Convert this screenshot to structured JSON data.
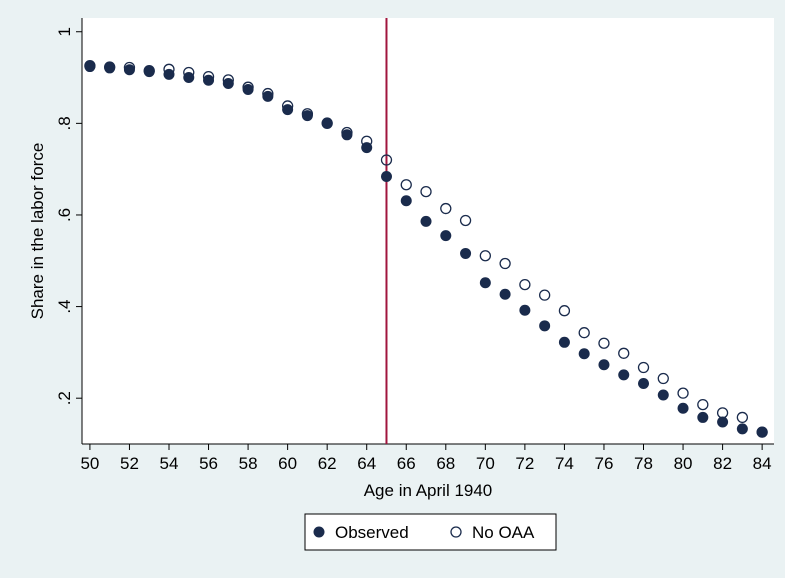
{
  "chart_data": {
    "type": "scatter",
    "xlabel": "Age in April 1940",
    "ylabel": "Share in the labor force",
    "xlim": [
      49.6,
      84.6
    ],
    "ylim": [
      0.1,
      1.03
    ],
    "x_ticks": [
      50,
      52,
      54,
      56,
      58,
      60,
      62,
      64,
      66,
      68,
      70,
      72,
      74,
      76,
      78,
      80,
      82,
      84
    ],
    "x_tick_labels": [
      "50",
      "52",
      "54",
      "56",
      "58",
      "60",
      "62",
      "64",
      "66",
      "68",
      "70",
      "72",
      "74",
      "76",
      "78",
      "80",
      "82",
      "84"
    ],
    "y_ticks": [
      0.2,
      0.4,
      0.6,
      0.8,
      1.0
    ],
    "y_tick_labels": [
      ".2",
      ".4",
      ".6",
      ".8",
      "1"
    ],
    "grid": false,
    "vertical_line": {
      "x": 65,
      "color": "#a0153e"
    },
    "legend_position": "bottom-center",
    "series": [
      {
        "name": "Observed",
        "marker": "filled-circle",
        "color": "#1a2b4c",
        "x": [
          50,
          51,
          52,
          53,
          54,
          55,
          56,
          57,
          58,
          59,
          60,
          61,
          62,
          63,
          64,
          65,
          66,
          67,
          68,
          69,
          70,
          71,
          72,
          73,
          74,
          75,
          76,
          77,
          78,
          79,
          80,
          81,
          82,
          83,
          84
        ],
        "y": [
          0.924,
          0.921,
          0.917,
          0.913,
          0.907,
          0.9,
          0.894,
          0.887,
          0.874,
          0.859,
          0.83,
          0.817,
          0.801,
          0.775,
          0.747,
          0.684,
          0.631,
          0.586,
          0.555,
          0.516,
          0.452,
          0.427,
          0.392,
          0.358,
          0.322,
          0.297,
          0.273,
          0.251,
          0.232,
          0.207,
          0.178,
          0.158,
          0.148,
          0.133,
          0.126
        ]
      },
      {
        "name": "No OAA",
        "marker": "hollow-circle",
        "color": "#1a2b4c",
        "x": [
          50,
          51,
          52,
          53,
          54,
          55,
          56,
          57,
          58,
          59,
          60,
          61,
          62,
          63,
          64,
          65,
          66,
          67,
          68,
          69,
          70,
          71,
          72,
          73,
          74,
          75,
          76,
          77,
          78,
          79,
          80,
          81,
          82,
          83,
          84
        ],
        "y": [
          0.926,
          0.923,
          0.922,
          0.915,
          0.918,
          0.911,
          0.902,
          0.895,
          0.879,
          0.865,
          0.838,
          0.821,
          0.8,
          0.78,
          0.761,
          0.72,
          0.666,
          0.651,
          0.614,
          0.588,
          0.511,
          0.494,
          0.448,
          0.425,
          0.391,
          0.343,
          0.32,
          0.298,
          0.267,
          0.243,
          0.211,
          0.186,
          0.168,
          0.158,
          0.126
        ]
      }
    ]
  },
  "colors": {
    "background": "#eaf2f3",
    "plot_area": "#ffffff",
    "marker": "#1a2b4c",
    "reference_line": "#a0153e"
  }
}
